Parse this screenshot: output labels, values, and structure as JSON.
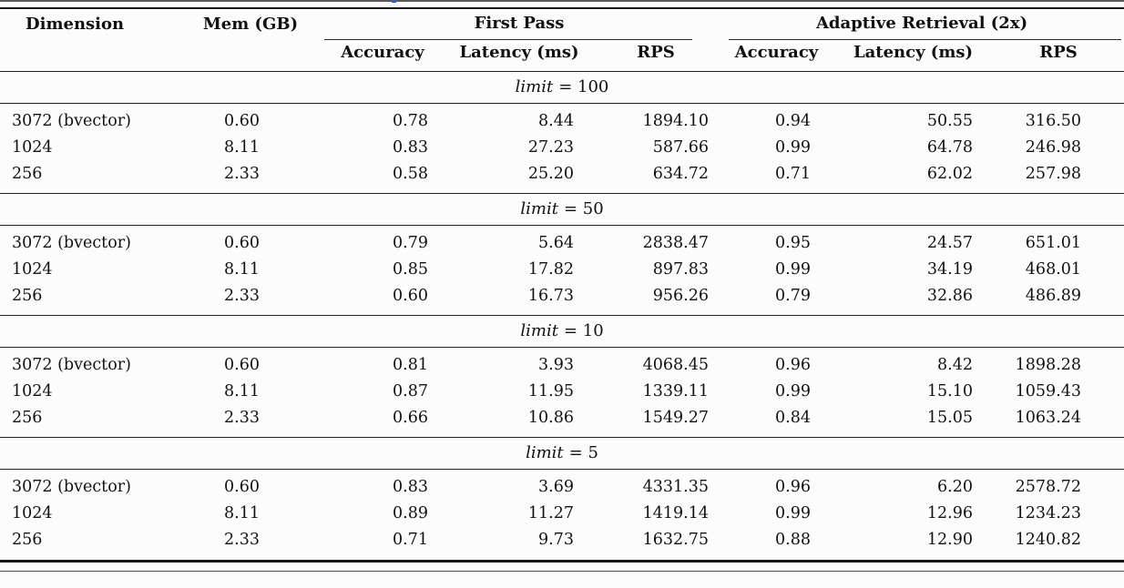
{
  "page": {
    "background": "#fcfcfc",
    "rule_color": "#151515",
    "text_color": "#111111",
    "link_artifact_color": "#3f5bbf"
  },
  "table": {
    "header": {
      "dimension": "Dimension",
      "mem": "Mem (GB)",
      "groups": [
        {
          "label": "First Pass",
          "sub": [
            "Accuracy",
            "Latency (ms)",
            "RPS"
          ]
        },
        {
          "label": "Adaptive Retrieval (2x)",
          "sub": [
            "Accuracy",
            "Latency (ms)",
            "RPS"
          ]
        }
      ]
    },
    "sections": [
      {
        "label_var": "limit",
        "label_eq": "= 100",
        "rows": [
          [
            "3072 (bvector)",
            "0.60",
            "0.78",
            "8.44",
            "1894.10",
            "0.94",
            "50.55",
            "316.50"
          ],
          [
            "1024",
            "8.11",
            "0.83",
            "27.23",
            "587.66",
            "0.99",
            "64.78",
            "246.98"
          ],
          [
            "256",
            "2.33",
            "0.58",
            "25.20",
            "634.72",
            "0.71",
            "62.02",
            "257.98"
          ]
        ]
      },
      {
        "label_var": "limit",
        "label_eq": "= 50",
        "rows": [
          [
            "3072 (bvector)",
            "0.60",
            "0.79",
            "5.64",
            "2838.47",
            "0.95",
            "24.57",
            "651.01"
          ],
          [
            "1024",
            "8.11",
            "0.85",
            "17.82",
            "897.83",
            "0.99",
            "34.19",
            "468.01"
          ],
          [
            "256",
            "2.33",
            "0.60",
            "16.73",
            "956.26",
            "0.79",
            "32.86",
            "486.89"
          ]
        ]
      },
      {
        "label_var": "limit",
        "label_eq": "= 10",
        "rows": [
          [
            "3072 (bvector)",
            "0.60",
            "0.81",
            "3.93",
            "4068.45",
            "0.96",
            "8.42",
            "1898.28"
          ],
          [
            "1024",
            "8.11",
            "0.87",
            "11.95",
            "1339.11",
            "0.99",
            "15.10",
            "1059.43"
          ],
          [
            "256",
            "2.33",
            "0.66",
            "10.86",
            "1549.27",
            "0.84",
            "15.05",
            "1063.24"
          ]
        ]
      },
      {
        "label_var": "limit",
        "label_eq": "= 5",
        "rows": [
          [
            "3072 (bvector)",
            "0.60",
            "0.83",
            "3.69",
            "4331.35",
            "0.96",
            "6.20",
            "2578.72"
          ],
          [
            "1024",
            "8.11",
            "0.89",
            "11.27",
            "1419.14",
            "0.99",
            "12.96",
            "1234.23"
          ],
          [
            "256",
            "2.33",
            "0.71",
            "9.73",
            "1632.75",
            "0.88",
            "12.90",
            "1240.82"
          ]
        ]
      }
    ]
  }
}
